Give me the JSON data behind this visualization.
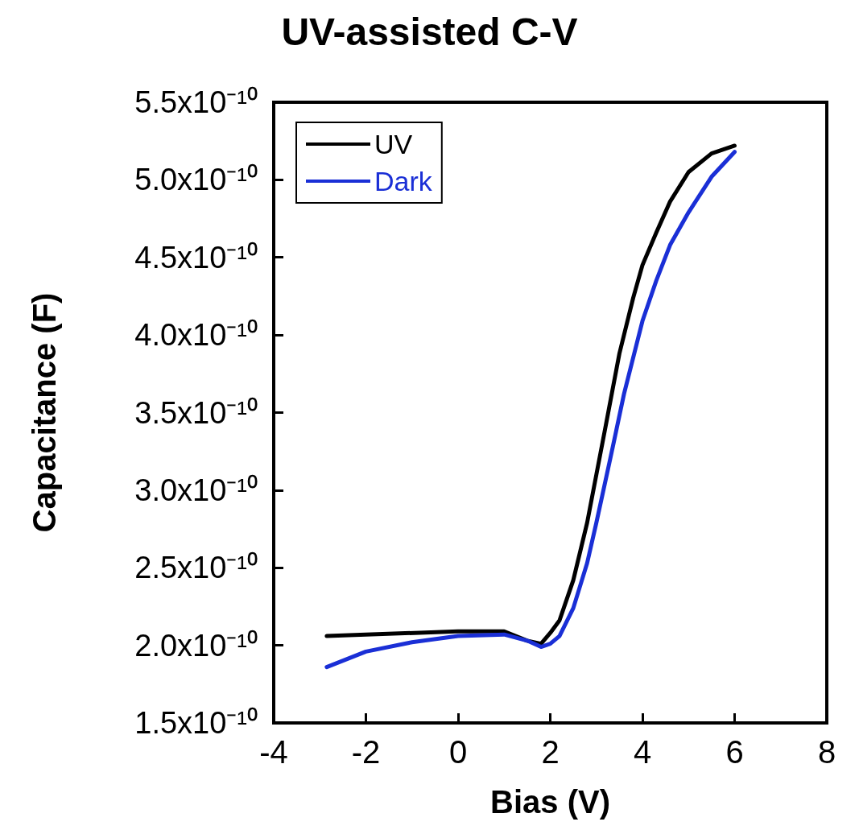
{
  "chart_data": {
    "type": "line",
    "title": "UV-assisted C-V",
    "xlabel": "Bias (V)",
    "ylabel": "Capacitance (F)",
    "xlim": [
      -4,
      8
    ],
    "xticks": [
      -4,
      -2,
      0,
      2,
      4,
      6,
      8
    ],
    "ylim": [
      1.5e-10,
      5.5e-10
    ],
    "yticks": [
      {
        "value": 1.5e-10,
        "label": "1.5x10⁻¹⁰"
      },
      {
        "value": 2e-10,
        "label": "2.0x10⁻¹⁰"
      },
      {
        "value": 2.5e-10,
        "label": "2.5x10⁻¹⁰"
      },
      {
        "value": 3e-10,
        "label": "3.0x10⁻¹⁰"
      },
      {
        "value": 3.5e-10,
        "label": "3.5x10⁻¹⁰"
      },
      {
        "value": 4e-10,
        "label": "4.0x10⁻¹⁰"
      },
      {
        "value": 4.5e-10,
        "label": "4.5x10⁻¹⁰"
      },
      {
        "value": 5e-10,
        "label": "5.0x10⁻¹⁰"
      },
      {
        "value": 5.5e-10,
        "label": "5.5x10⁻¹⁰"
      }
    ],
    "grid": false,
    "legend": "top left",
    "marker": "none",
    "line_style": "solid",
    "series": [
      {
        "name": "UV",
        "color": "#000000",
        "x": [
          -2.85,
          0,
          1,
          1.5,
          1.8,
          2.0,
          2.2,
          2.5,
          2.8,
          3.0,
          3.2,
          3.5,
          3.8,
          4.0,
          4.3,
          4.6,
          5.0,
          5.5,
          6.0
        ],
        "values": [
          2.06e-10,
          2.09e-10,
          2.09e-10,
          2.03e-10,
          2.01e-10,
          2.08e-10,
          2.16e-10,
          2.42e-10,
          2.79e-10,
          3.1e-10,
          3.41e-10,
          3.88e-10,
          4.24e-10,
          4.45e-10,
          4.66e-10,
          4.86e-10,
          5.05e-10,
          5.17e-10,
          5.22e-10
        ]
      },
      {
        "name": "Dark",
        "color": "#1a2fd6",
        "x": [
          -2.85,
          -2,
          -1,
          0,
          1,
          1.5,
          1.8,
          2.0,
          2.2,
          2.5,
          2.8,
          3.0,
          3.3,
          3.6,
          4.0,
          4.3,
          4.6,
          5.0,
          5.5,
          6.0
        ],
        "values": [
          1.86e-10,
          1.96e-10,
          2.02e-10,
          2.06e-10,
          2.07e-10,
          2.03e-10,
          1.99e-10,
          2.01e-10,
          2.06e-10,
          2.24e-10,
          2.53e-10,
          2.79e-10,
          3.2e-10,
          3.62e-10,
          4.09e-10,
          4.35e-10,
          4.58e-10,
          4.79e-10,
          5.02e-10,
          5.18e-10
        ]
      }
    ]
  }
}
